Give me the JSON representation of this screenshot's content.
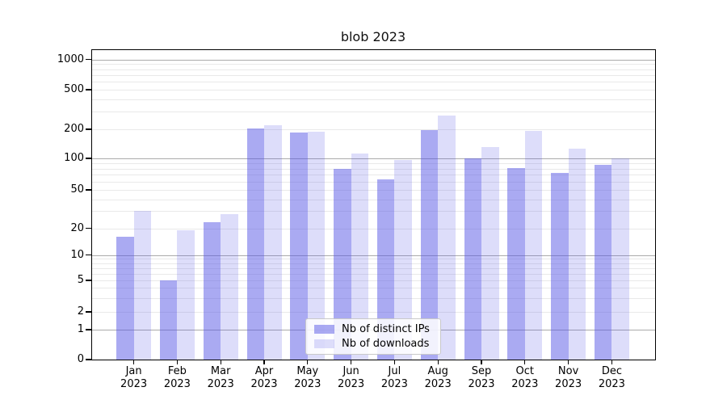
{
  "figure": {
    "title": "blob 2023"
  },
  "chart_data": {
    "type": "bar",
    "title": "blob 2023",
    "categories": [
      "Jan 2023",
      "Feb 2023",
      "Mar 2023",
      "Apr 2023",
      "May 2023",
      "Jun 2023",
      "Jul 2023",
      "Aug 2023",
      "Sep 2023",
      "Oct 2023",
      "Nov 2023",
      "Dec 2023"
    ],
    "series": [
      {
        "name": "Nb of distinct IPs",
        "color": "#5555e6",
        "alpha": 0.5,
        "values": [
          16,
          5,
          23,
          205,
          185,
          79,
          63,
          196,
          100,
          81,
          72,
          87
        ]
      },
      {
        "name": "Nb of downloads",
        "color": "#5555e6",
        "alpha": 0.2,
        "values": [
          30,
          19,
          28,
          220,
          190,
          112,
          97,
          275,
          130,
          192,
          125,
          100
        ]
      }
    ],
    "xlabel": "",
    "ylabel": "",
    "yscale": "symlog",
    "yticks": [
      0,
      1,
      2,
      5,
      10,
      20,
      50,
      100,
      200,
      500,
      1000
    ],
    "ylim": [
      0,
      1250
    ],
    "grid": true,
    "legend_position": "lower-center"
  },
  "colors": {
    "axis": "#000000",
    "grid_major": "#ababab",
    "grid_minor": "#e9e9e9",
    "background": "#ffffff",
    "legend_border": "#c9c9c9"
  }
}
